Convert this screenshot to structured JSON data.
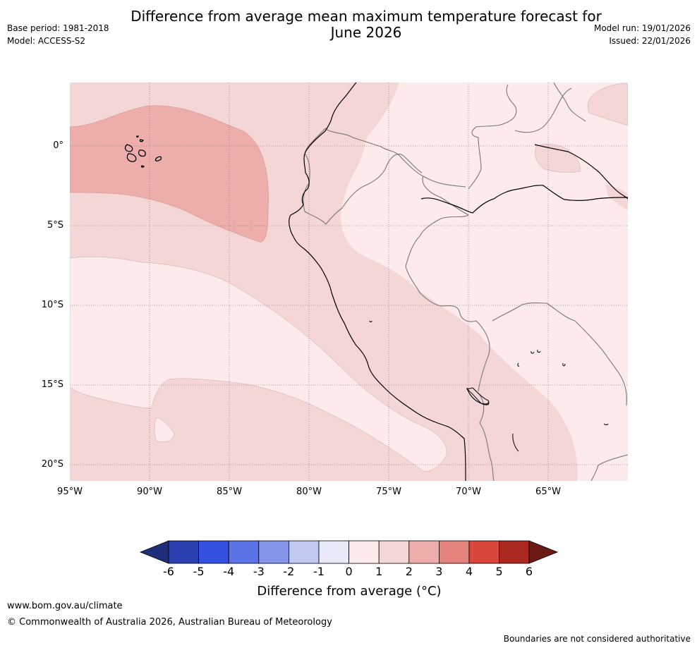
{
  "header": {
    "title_line1": "Difference from average mean maximum temperature forecast for",
    "title_line2": "June 2026",
    "base_period": "Base period: 1981-2018",
    "model": "Model: ACCESS-S2",
    "model_run": "Model run: 19/01/2026",
    "issued": "Issued: 22/01/2026"
  },
  "map": {
    "lat_labels": [
      "0°",
      "5°S",
      "10°S",
      "15°S",
      "20°S"
    ],
    "lon_labels": [
      "95°W",
      "90°W",
      "85°W",
      "80°W",
      "75°W",
      "70°W",
      "65°W"
    ],
    "colors": {
      "ocean_1_2": "#f5d6d6",
      "warm_2_3": "#edaeab",
      "land_0_1": "#fcebea",
      "coast": "#000000",
      "border": "#777777",
      "grid": "#888888"
    }
  },
  "colorbar": {
    "ticks": [
      "-6",
      "-5",
      "-4",
      "-3",
      "-2",
      "-1",
      "0",
      "1",
      "2",
      "3",
      "4",
      "5",
      "6"
    ],
    "label": "Difference from average (°C)",
    "colors": [
      "#1f2e7a",
      "#2a3fb0",
      "#3451e0",
      "#5a73e6",
      "#8495e9",
      "#c1c9f3",
      "#e8eaf9",
      "#fcebea",
      "#f5d6d6",
      "#edaeab",
      "#e5847c",
      "#d9473c",
      "#aa2820",
      "#6e1a14"
    ]
  },
  "footer": {
    "url": "www.bom.gov.au/climate",
    "copyright": "© Commonwealth of Australia 2026, Australian Bureau of Meteorology",
    "disclaimer": "Boundaries are not considered authoritative"
  }
}
